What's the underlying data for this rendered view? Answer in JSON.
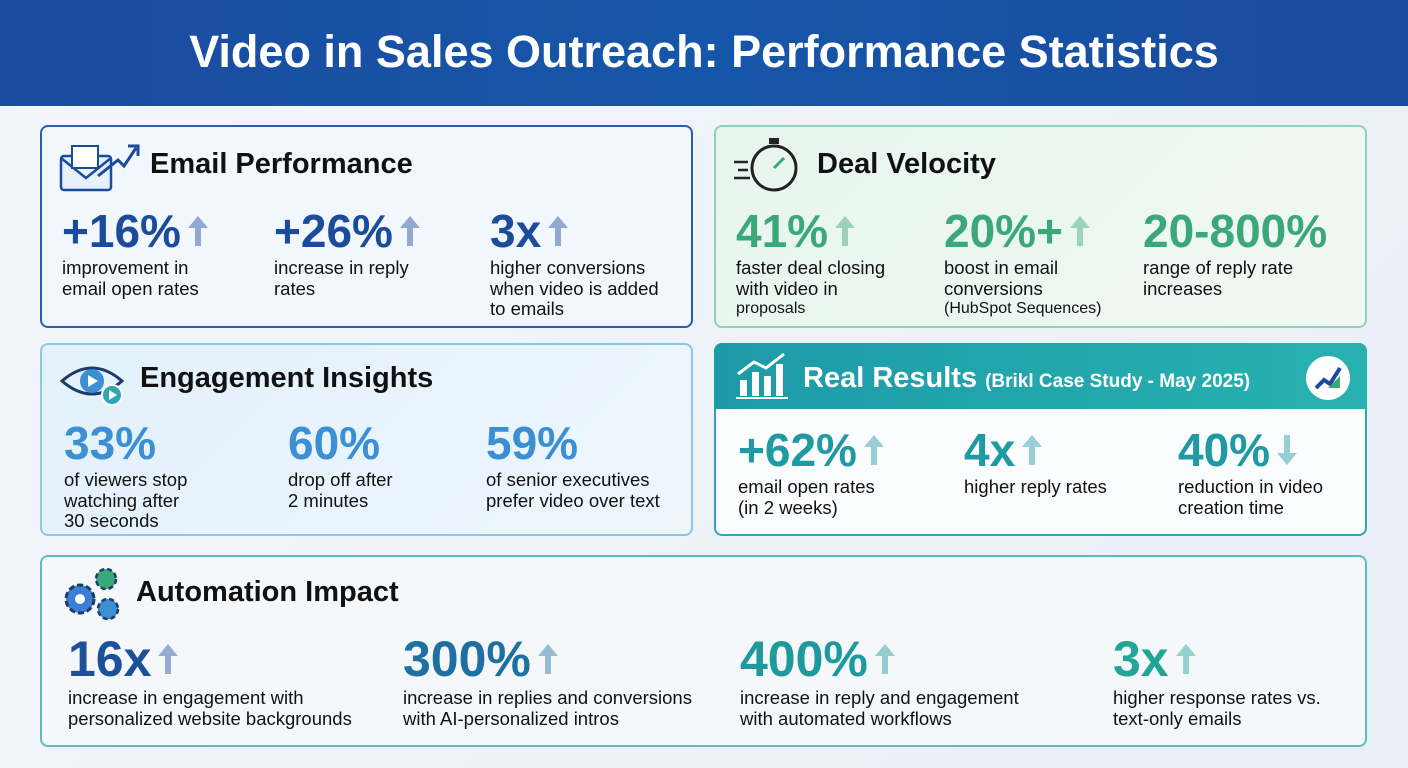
{
  "header": {
    "title": "Video in Sales Outreach: Performance Statistics"
  },
  "panels": [
    {
      "title": "Email Performance",
      "color": "#1b4b9b",
      "stats": [
        {
          "value": "+16%",
          "trend": "up",
          "lines": [
            "improvement in",
            "email open rates"
          ]
        },
        {
          "value": "+26%",
          "trend": "up",
          "lines": [
            "increase in reply",
            "rates"
          ]
        },
        {
          "value": "3x",
          "trend": "up",
          "lines": [
            "higher conversions",
            "when video is added",
            "to emails"
          ]
        }
      ]
    },
    {
      "title": "Deal Velocity",
      "color": "#3aa878",
      "stats": [
        {
          "value": "41%",
          "trend": "up",
          "lines": [
            "faster deal closing",
            "with video in",
            "proposals"
          ]
        },
        {
          "value": "20%+",
          "trend": "up",
          "lines": [
            "boost in email",
            "conversions",
            "(HubSpot Sequences)"
          ]
        },
        {
          "value": "20-800%",
          "lines": [
            "range of reply rate",
            "increases"
          ]
        }
      ]
    },
    {
      "title": "Engagement Insights",
      "color": "#3b8fd2",
      "stats": [
        {
          "value": "33%",
          "lines": [
            "of viewers stop",
            "watching after",
            "30 seconds"
          ]
        },
        {
          "value": "60%",
          "lines": [
            "drop off after",
            "2 minutes"
          ]
        },
        {
          "value": "59%",
          "lines": [
            "of senior executives",
            "prefer video over text"
          ]
        }
      ]
    },
    {
      "title": "Real Results",
      "subtitle": "(Brikl Case Study - May 2025)",
      "color": "#1f9aa2",
      "stats": [
        {
          "value": "+62%",
          "trend": "up",
          "lines": [
            "email open rates",
            "(in 2 weeks)"
          ]
        },
        {
          "value": "4x",
          "trend": "up",
          "lines": [
            "higher reply rates"
          ]
        },
        {
          "value": "40%",
          "trend": "down",
          "lines": [
            "reduction in video",
            "creation time"
          ]
        }
      ]
    },
    {
      "title": "Automation Impact",
      "color": "#1e4f9a",
      "stats": [
        {
          "value": "16x",
          "trend": "up",
          "color": "#1e4f9a",
          "lines": [
            "increase in engagement with",
            "personalized website backgrounds"
          ]
        },
        {
          "value": "300%",
          "trend": "up",
          "color": "#1f70a2",
          "lines": [
            "increase in replies and conversions",
            "with AI-personalized intros"
          ]
        },
        {
          "value": "400%",
          "trend": "up",
          "color": "#1f9a9c",
          "lines": [
            "increase in reply and engagement",
            "with automated workflows"
          ]
        },
        {
          "value": "3x",
          "trend": "up",
          "color": "#22a596",
          "lines": [
            "higher response rates vs.",
            "text-only emails"
          ]
        }
      ]
    }
  ]
}
